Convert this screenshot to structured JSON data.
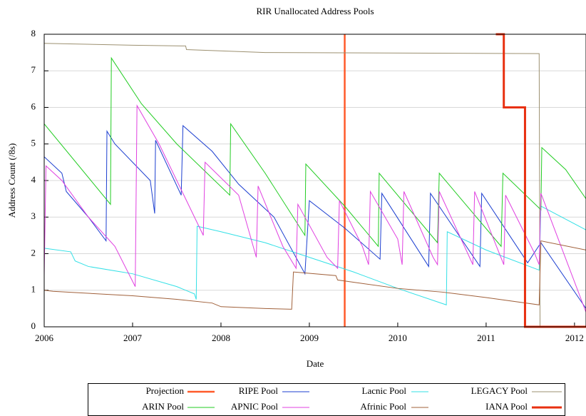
{
  "chart_data": {
    "type": "line",
    "title": "RIR Unallocated Address Pools",
    "xlabel": "Date",
    "ylabel": "Address Count (/8s)",
    "xlim": [
      2006,
      2012.13
    ],
    "xticks": [
      2006,
      2007,
      2008,
      2009,
      2010,
      2011,
      2012
    ],
    "ylim": [
      0,
      8
    ],
    "yticks": [
      0,
      1,
      2,
      3,
      4,
      5,
      6,
      7,
      8
    ],
    "grid": true,
    "legend": "bottom",
    "series": [
      {
        "name": "Projection",
        "color": "#ff5a2a",
        "line_width": 2.5,
        "x": [
          2009.4,
          2009.4
        ],
        "values": [
          0,
          8
        ]
      },
      {
        "name": "RIPE Pool",
        "color": "#1c3fd0",
        "line_width": 1,
        "x": [
          2006,
          2006.2,
          2006.25,
          2006.5,
          2006.7,
          2006.71,
          2006.8,
          2007.2,
          2007.25,
          2007.26,
          2007.55,
          2007.57,
          2007.9,
          2008.2,
          2008.6,
          2008.95,
          2009.0,
          2009.4,
          2009.8,
          2009.82,
          2010.35,
          2010.37,
          2010.93,
          2010.95,
          2011.47,
          2011.62,
          2012.13
        ],
        "values": [
          4.65,
          4.2,
          3.7,
          3.0,
          2.35,
          5.35,
          5.0,
          4.0,
          3.1,
          5.1,
          3.6,
          5.5,
          4.8,
          3.9,
          3.0,
          1.45,
          3.45,
          2.7,
          1.85,
          3.65,
          1.65,
          3.65,
          1.65,
          3.65,
          1.75,
          2.3,
          0.5
        ]
      },
      {
        "name": "Lacnic Pool",
        "color": "#33e0e6",
        "line_width": 1,
        "x": [
          2006,
          2006.3,
          2006.35,
          2006.5,
          2007,
          2007.5,
          2007.7,
          2007.72,
          2007.73,
          2008,
          2008.5,
          2009,
          2009.5,
          2010,
          2010.55,
          2010.56,
          2011.0,
          2011.6,
          2011.62,
          2012.13
        ],
        "values": [
          2.15,
          2.05,
          1.8,
          1.65,
          1.45,
          1.1,
          0.9,
          0.75,
          2.75,
          2.6,
          2.3,
          1.9,
          1.5,
          1.05,
          0.6,
          2.6,
          2.1,
          1.55,
          3.3,
          2.65
        ]
      },
      {
        "name": "LEGACY Pool",
        "color": "#9c9070",
        "line_width": 1,
        "x": [
          2006,
          2007,
          2007.6,
          2007.61,
          2008.5,
          2011.6,
          2011.61,
          2012.13
        ],
        "values": [
          7.75,
          7.7,
          7.68,
          7.58,
          7.5,
          7.47,
          0,
          0
        ]
      },
      {
        "name": "ARIN Pool",
        "color": "#22cc22",
        "line_width": 1,
        "x": [
          2006,
          2006.75,
          2006.76,
          2007.1,
          2007.5,
          2008.1,
          2008.11,
          2008.5,
          2008.95,
          2008.96,
          2009.4,
          2009.78,
          2009.79,
          2010.45,
          2010.47,
          2011.17,
          2011.19,
          2011.62,
          2011.63,
          2011.9,
          2012.13
        ],
        "values": [
          5.55,
          3.35,
          7.35,
          6.1,
          5.0,
          3.6,
          5.55,
          4.2,
          2.5,
          4.45,
          3.3,
          2.2,
          4.2,
          2.3,
          4.2,
          2.2,
          4.2,
          3.2,
          4.9,
          4.3,
          3.5
        ]
      },
      {
        "name": "APNIC Pool",
        "color": "#e040e0",
        "line_width": 1,
        "x": [
          2006,
          2006.02,
          2006.2,
          2006.5,
          2006.8,
          2007.03,
          2007.05,
          2007.3,
          2007.6,
          2007.8,
          2007.82,
          2008.2,
          2008.4,
          2008.42,
          2008.7,
          2008.85,
          2008.87,
          2009.2,
          2009.32,
          2009.34,
          2009.6,
          2009.67,
          2009.69,
          2010.0,
          2010.05,
          2010.07,
          2010.4,
          2010.45,
          2010.47,
          2010.85,
          2010.87,
          2011.2,
          2011.22,
          2011.55,
          2011.6,
          2011.62,
          2012.13
        ],
        "values": [
          1.4,
          4.4,
          4.0,
          3.0,
          2.2,
          1.1,
          6.05,
          5.0,
          3.5,
          2.5,
          4.5,
          3.6,
          1.9,
          3.85,
          2.2,
          1.6,
          3.35,
          1.9,
          1.6,
          3.45,
          2.2,
          1.7,
          3.7,
          2.4,
          1.7,
          3.7,
          1.9,
          1.7,
          3.7,
          1.7,
          3.7,
          1.7,
          3.6,
          2.0,
          1.7,
          3.65,
          0.4
        ]
      },
      {
        "name": "Afrinic Pool",
        "color": "#a0603a",
        "line_width": 1,
        "x": [
          2006,
          2006.1,
          2007,
          2007.5,
          2007.9,
          2008,
          2008.5,
          2008.8,
          2008.82,
          2009.3,
          2009.32,
          2010,
          2010.5,
          2011.0,
          2011.6,
          2011.62,
          2012.13
        ],
        "values": [
          1.0,
          0.97,
          0.85,
          0.75,
          0.65,
          0.55,
          0.5,
          0.48,
          1.5,
          1.4,
          1.28,
          1.05,
          0.95,
          0.8,
          0.6,
          2.35,
          2.1
        ]
      },
      {
        "name": "IANA Pool",
        "color": "#e83010",
        "line_width": 3,
        "x": [
          2011.11,
          2011.2,
          2011.2,
          2011.44,
          2011.44,
          2012.13
        ],
        "values": [
          8,
          8,
          6,
          6,
          0,
          0
        ]
      }
    ]
  }
}
